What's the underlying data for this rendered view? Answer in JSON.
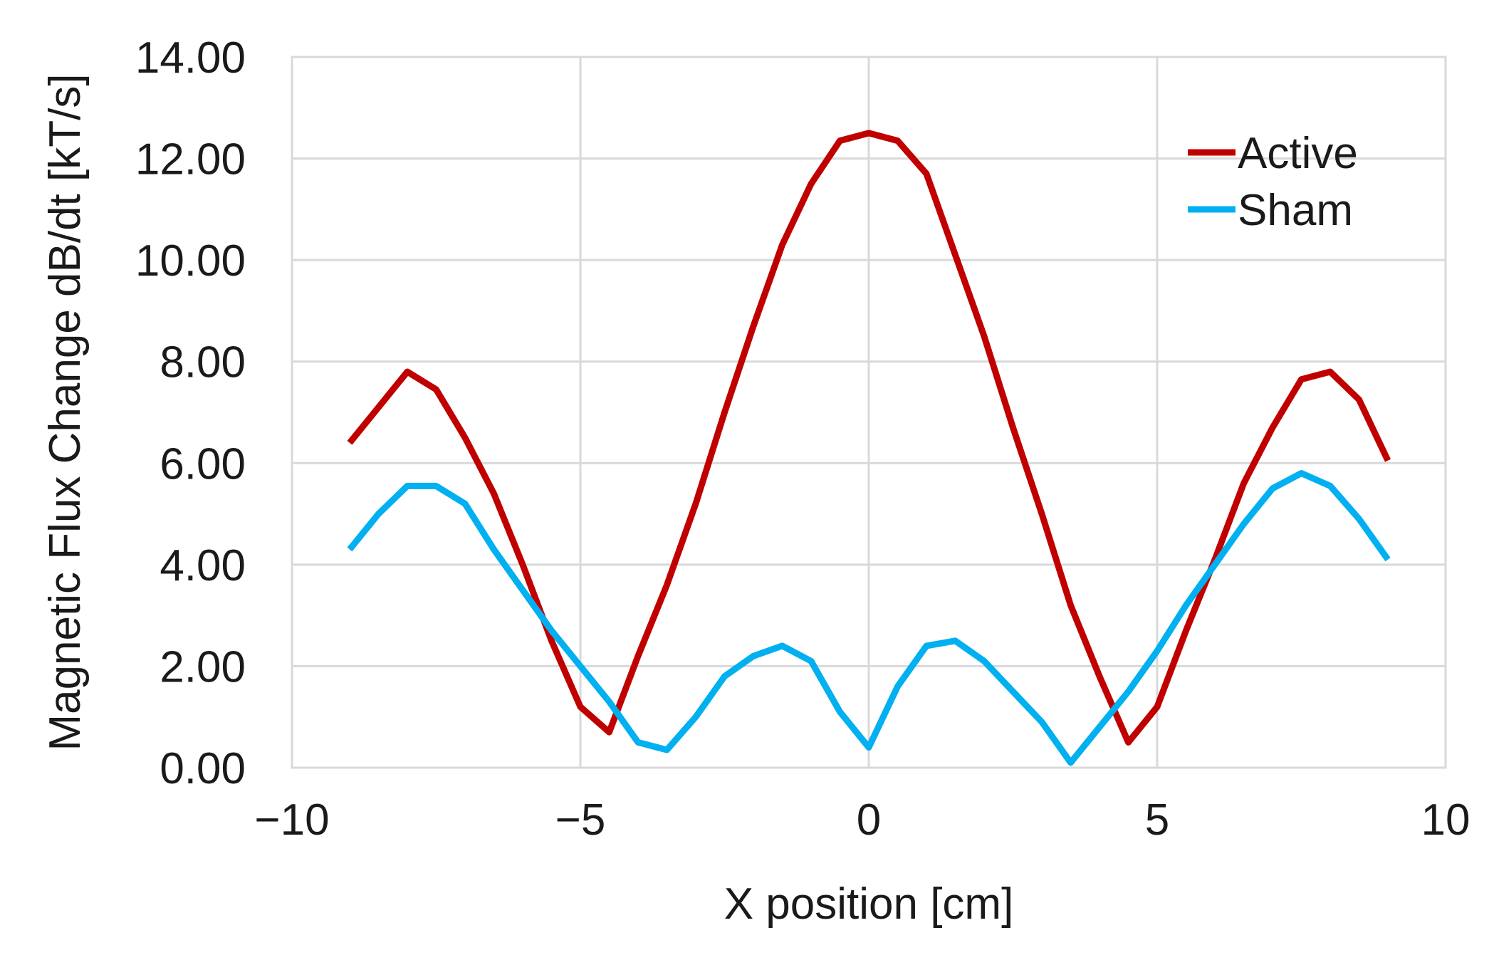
{
  "chart_data": {
    "type": "line",
    "title": "",
    "xlabel": "X position [cm]",
    "ylabel": "Magnetic Flux Change dB/dt [kT/s]",
    "xlim": [
      -10,
      10
    ],
    "ylim": [
      0,
      14
    ],
    "x_ticks": [
      -10,
      -5,
      0,
      5,
      10
    ],
    "x_tick_labels": [
      "−10",
      "−5",
      "0",
      "5",
      "10"
    ],
    "y_ticks": [
      0,
      2,
      4,
      6,
      8,
      10,
      12,
      14
    ],
    "y_tick_labels": [
      "0.00",
      "2.00",
      "4.00",
      "6.00",
      "8.00",
      "10.00",
      "12.00",
      "14.00"
    ],
    "grid": true,
    "legend_position": "top-right",
    "series": [
      {
        "name": "Active",
        "color": "#c00000",
        "x": [
          -9,
          -8.5,
          -8,
          -7.5,
          -7,
          -6.5,
          -6,
          -5.5,
          -5,
          -4.5,
          -4,
          -3.5,
          -3,
          -2.5,
          -2,
          -1.5,
          -1,
          -0.5,
          0,
          0.5,
          1,
          1.5,
          2,
          2.5,
          3,
          3.5,
          4,
          4.5,
          5,
          5.5,
          6,
          6.5,
          7,
          7.5,
          8,
          8.5,
          9
        ],
        "y": [
          6.4,
          7.1,
          7.8,
          7.45,
          6.5,
          5.4,
          4.0,
          2.5,
          1.2,
          0.7,
          2.2,
          3.6,
          5.2,
          7.0,
          8.7,
          10.3,
          11.5,
          12.35,
          12.5,
          12.35,
          11.7,
          10.1,
          8.5,
          6.7,
          5.0,
          3.2,
          1.8,
          0.5,
          1.2,
          2.7,
          4.1,
          5.6,
          6.7,
          7.65,
          7.8,
          7.25,
          6.05
        ]
      },
      {
        "name": "Sham",
        "color": "#00b0f0",
        "x": [
          -9,
          -8.5,
          -8,
          -7.5,
          -7,
          -6.5,
          -6,
          -5.5,
          -5,
          -4.5,
          -4,
          -3.5,
          -3,
          -2.5,
          -2,
          -1.5,
          -1,
          -0.5,
          0,
          0.5,
          1,
          1.5,
          2,
          2.5,
          3,
          3.5,
          4,
          4.5,
          5,
          5.5,
          6,
          6.5,
          7,
          7.5,
          8,
          8.5,
          9
        ],
        "y": [
          4.3,
          5.0,
          5.55,
          5.55,
          5.2,
          4.3,
          3.5,
          2.7,
          2.0,
          1.3,
          0.5,
          0.35,
          1.0,
          1.8,
          2.2,
          2.4,
          2.1,
          1.1,
          0.4,
          1.6,
          2.4,
          2.5,
          2.1,
          1.5,
          0.9,
          0.1,
          0.8,
          1.5,
          2.3,
          3.2,
          4.0,
          4.8,
          5.5,
          5.8,
          5.55,
          4.9,
          4.1
        ]
      }
    ]
  }
}
